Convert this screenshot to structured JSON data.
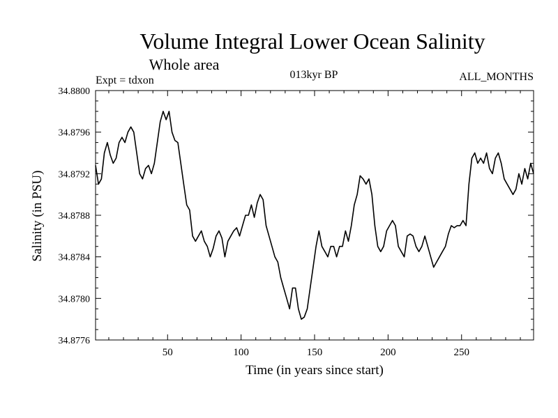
{
  "chart_data": {
    "type": "line",
    "title": "Volume Integral Lower Ocean Salinity",
    "subtitle": "Whole area",
    "annotations": {
      "left": "Expt = tdxon",
      "center": "013kyr BP",
      "right": "ALL_MONTHS"
    },
    "xlabel": "Time (in years since start)",
    "ylabel": "Salinity (in PSU)",
    "xlim": [
      1,
      299
    ],
    "ylim": [
      34.8776,
      34.88
    ],
    "x_ticks": [
      50,
      100,
      150,
      200,
      250
    ],
    "y_ticks": [
      34.8776,
      34.878,
      34.8784,
      34.8788,
      34.8792,
      34.8796,
      34.88
    ],
    "x_tick_labels": [
      "50",
      "100",
      "150",
      "200",
      "250"
    ],
    "y_tick_labels": [
      "34.8776",
      "34.8780",
      "34.8784",
      "34.8788",
      "34.8792",
      "34.8796",
      "34.8800"
    ],
    "grid": false,
    "series": [
      {
        "color": "#000000",
        "points": [
          [
            1,
            34.87928
          ],
          [
            3,
            34.8791
          ],
          [
            5,
            34.87915
          ],
          [
            7,
            34.8794
          ],
          [
            9,
            34.8795
          ],
          [
            11,
            34.87938
          ],
          [
            13,
            34.8793
          ],
          [
            15,
            34.87935
          ],
          [
            17,
            34.8795
          ],
          [
            19,
            34.87955
          ],
          [
            21,
            34.8795
          ],
          [
            23,
            34.8796
          ],
          [
            25,
            34.87965
          ],
          [
            27,
            34.8796
          ],
          [
            29,
            34.8794
          ],
          [
            31,
            34.8792
          ],
          [
            33,
            34.87915
          ],
          [
            35,
            34.87925
          ],
          [
            37,
            34.87928
          ],
          [
            39,
            34.8792
          ],
          [
            41,
            34.8793
          ],
          [
            43,
            34.8795
          ],
          [
            45,
            34.8797
          ],
          [
            47,
            34.8798
          ],
          [
            49,
            34.87972
          ],
          [
            51,
            34.8798
          ],
          [
            53,
            34.8796
          ],
          [
            55,
            34.87952
          ],
          [
            57,
            34.8795
          ],
          [
            59,
            34.8793
          ],
          [
            61,
            34.8791
          ],
          [
            63,
            34.8789
          ],
          [
            65,
            34.87885
          ],
          [
            67,
            34.8786
          ],
          [
            69,
            34.87855
          ],
          [
            71,
            34.8786
          ],
          [
            73,
            34.87865
          ],
          [
            75,
            34.87855
          ],
          [
            77,
            34.8785
          ],
          [
            79,
            34.8784
          ],
          [
            81,
            34.87848
          ],
          [
            83,
            34.8786
          ],
          [
            85,
            34.87865
          ],
          [
            87,
            34.87858
          ],
          [
            89,
            34.8784
          ],
          [
            91,
            34.87855
          ],
          [
            93,
            34.8786
          ],
          [
            95,
            34.87865
          ],
          [
            97,
            34.87868
          ],
          [
            99,
            34.8786
          ],
          [
            101,
            34.8787
          ],
          [
            103,
            34.8788
          ],
          [
            105,
            34.8788
          ],
          [
            107,
            34.8789
          ],
          [
            109,
            34.87878
          ],
          [
            111,
            34.87892
          ],
          [
            113,
            34.879
          ],
          [
            115,
            34.87895
          ],
          [
            117,
            34.8787
          ],
          [
            119,
            34.8786
          ],
          [
            121,
            34.8785
          ],
          [
            123,
            34.8784
          ],
          [
            125,
            34.87835
          ],
          [
            127,
            34.8782
          ],
          [
            129,
            34.8781
          ],
          [
            131,
            34.878
          ],
          [
            133,
            34.8779
          ],
          [
            135,
            34.8781
          ],
          [
            137,
            34.8781
          ],
          [
            139,
            34.8779
          ],
          [
            141,
            34.8778
          ],
          [
            143,
            34.87782
          ],
          [
            145,
            34.8779
          ],
          [
            147,
            34.8781
          ],
          [
            149,
            34.8783
          ],
          [
            151,
            34.8785
          ],
          [
            153,
            34.87865
          ],
          [
            155,
            34.8785
          ],
          [
            157,
            34.87845
          ],
          [
            159,
            34.8784
          ],
          [
            161,
            34.8785
          ],
          [
            163,
            34.8785
          ],
          [
            165,
            34.8784
          ],
          [
            167,
            34.8785
          ],
          [
            169,
            34.8785
          ],
          [
            171,
            34.87865
          ],
          [
            173,
            34.87855
          ],
          [
            175,
            34.8787
          ],
          [
            177,
            34.8789
          ],
          [
            179,
            34.879
          ],
          [
            181,
            34.87918
          ],
          [
            183,
            34.87915
          ],
          [
            185,
            34.8791
          ],
          [
            187,
            34.87915
          ],
          [
            189,
            34.879
          ],
          [
            191,
            34.8787
          ],
          [
            193,
            34.8785
          ],
          [
            195,
            34.87845
          ],
          [
            197,
            34.8785
          ],
          [
            199,
            34.87865
          ],
          [
            201,
            34.8787
          ],
          [
            203,
            34.87875
          ],
          [
            205,
            34.8787
          ],
          [
            207,
            34.8785
          ],
          [
            209,
            34.87845
          ],
          [
            211,
            34.8784
          ],
          [
            213,
            34.8786
          ],
          [
            215,
            34.87862
          ],
          [
            217,
            34.8786
          ],
          [
            219,
            34.8785
          ],
          [
            221,
            34.87845
          ],
          [
            223,
            34.8785
          ],
          [
            225,
            34.8786
          ],
          [
            227,
            34.8785
          ],
          [
            229,
            34.8784
          ],
          [
            231,
            34.8783
          ],
          [
            233,
            34.87835
          ],
          [
            235,
            34.8784
          ],
          [
            237,
            34.87845
          ],
          [
            239,
            34.8785
          ],
          [
            241,
            34.87862
          ],
          [
            243,
            34.8787
          ],
          [
            245,
            34.87868
          ],
          [
            247,
            34.8787
          ],
          [
            249,
            34.8787
          ],
          [
            251,
            34.87875
          ],
          [
            253,
            34.8787
          ],
          [
            255,
            34.8791
          ],
          [
            257,
            34.87935
          ],
          [
            259,
            34.8794
          ],
          [
            261,
            34.8793
          ],
          [
            263,
            34.87935
          ],
          [
            265,
            34.8793
          ],
          [
            267,
            34.8794
          ],
          [
            269,
            34.87925
          ],
          [
            271,
            34.8792
          ],
          [
            273,
            34.87935
          ],
          [
            275,
            34.8794
          ],
          [
            277,
            34.8793
          ],
          [
            279,
            34.87915
          ],
          [
            281,
            34.8791
          ],
          [
            283,
            34.87905
          ],
          [
            285,
            34.879
          ],
          [
            287,
            34.87905
          ],
          [
            289,
            34.8792
          ],
          [
            291,
            34.8791
          ],
          [
            293,
            34.87925
          ],
          [
            295,
            34.87915
          ],
          [
            297,
            34.8793
          ],
          [
            299,
            34.8792
          ]
        ]
      }
    ]
  }
}
